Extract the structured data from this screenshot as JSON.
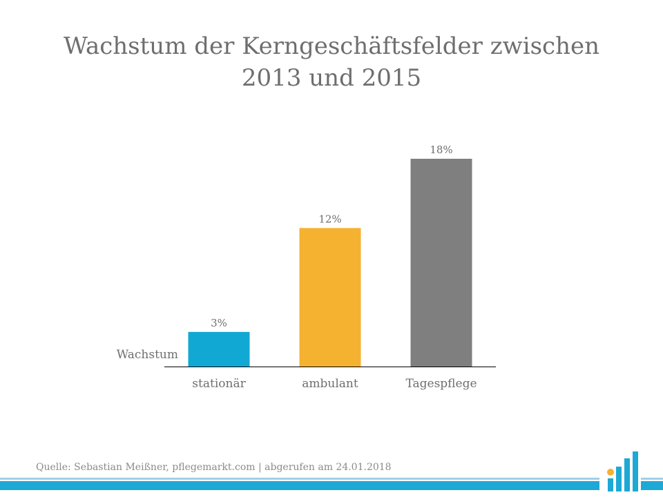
{
  "title_lines": [
    "Wachstum der Kerngeschäftsfelder zwischen",
    "2013 und 2015"
  ],
  "source": "Quelle: Sebastian Meißner, pflegemarkt.com | abgerufen am 24.01.2018",
  "colors": {
    "text": "#6e6e6e",
    "axis": "#000000",
    "footer_stripe": "#1ea8d6",
    "footer_stripe_light": "#9fd0e8",
    "logo_dot": "#f5b130"
  },
  "chart_data": {
    "type": "bar",
    "title": "Wachstum der Kerngeschäftsfelder zwischen 2013 und 2015",
    "categories": [
      "stationär",
      "ambulant",
      "Tagespflege"
    ],
    "series": [
      {
        "name": "Wachstum",
        "values": [
          3,
          12,
          18
        ],
        "colors": [
          "#12a8d4",
          "#f5b130",
          "#7f7f7f"
        ]
      }
    ],
    "value_labels": [
      "3%",
      "12%",
      "18%"
    ],
    "value_format": "percent",
    "ylim": [
      0,
      18
    ],
    "y_axis_visible": false,
    "grid": false,
    "legend": "left"
  }
}
